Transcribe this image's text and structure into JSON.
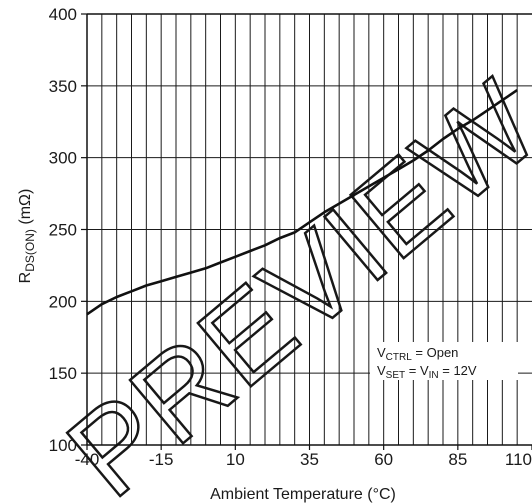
{
  "chart_data": {
    "type": "line",
    "title": "",
    "xlabel": "Ambient Temperature (°C)",
    "ylabel": {
      "main": "R",
      "sub": "DS(ON)",
      "unit": " (mΩ)"
    },
    "xlim": [
      -40,
      110
    ],
    "ylim": [
      100,
      400
    ],
    "x_ticks": [
      -40,
      -15,
      10,
      35,
      60,
      85,
      110
    ],
    "y_ticks": [
      100,
      150,
      200,
      250,
      300,
      350,
      400
    ],
    "grid": true,
    "series": [
      {
        "x": [
          -40,
          -35,
          -30,
          -25,
          -20,
          -15,
          -10,
          -5,
          0,
          5,
          10,
          15,
          20,
          25,
          30,
          35,
          40,
          45,
          50,
          55,
          60,
          65,
          70,
          75,
          80,
          85,
          90,
          95,
          100,
          105
        ],
        "y": [
          191,
          198,
          203,
          207,
          211,
          214,
          217,
          220,
          223,
          227,
          231,
          235,
          239,
          244,
          248,
          255,
          262,
          268,
          274,
          280,
          286,
          292,
          298,
          305,
          313,
          320,
          326,
          333,
          340,
          347
        ]
      }
    ],
    "annotation": {
      "line1": {
        "main": "V",
        "sub": "CTRL",
        "rest": " = Open"
      },
      "line2": {
        "main": "V",
        "sub": "SET",
        "mid": " = V",
        "sub2": "IN",
        "rest": " = 12V"
      }
    },
    "watermark": "PREVIEW"
  }
}
